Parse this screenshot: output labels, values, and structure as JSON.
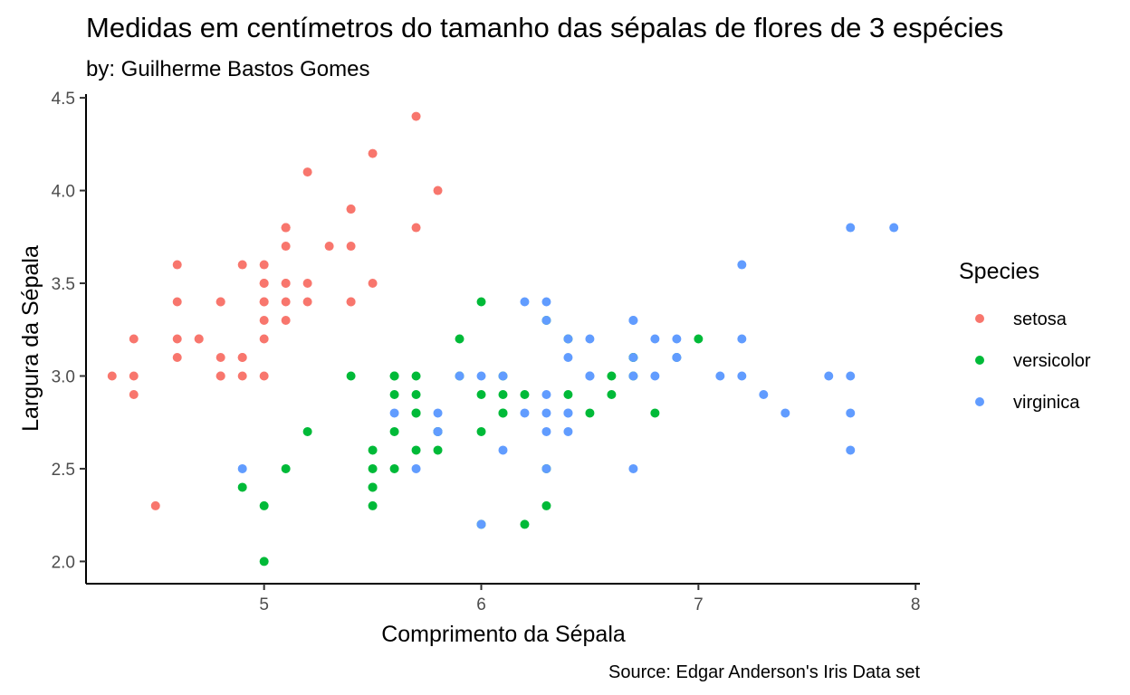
{
  "chart_data": {
    "type": "scatter",
    "title": "Medidas em centímetros do tamanho das sépalas de flores de 3 espécies",
    "subtitle": "by: Guilherme Bastos Gomes",
    "xlabel": "Comprimento da Sépala",
    "ylabel": "Largura da Sépala",
    "caption": "Source: Edgar Anderson's Iris Data set",
    "xlim": [
      4.18,
      8.02
    ],
    "ylim": [
      1.88,
      4.52
    ],
    "x_ticks": [
      5,
      6,
      7,
      8
    ],
    "x_tick_labels": [
      "5",
      "6",
      "7",
      "8"
    ],
    "y_ticks": [
      2.0,
      2.5,
      3.0,
      3.5,
      4.0,
      4.5
    ],
    "y_tick_labels": [
      "2.0",
      "2.5",
      "3.0",
      "3.5",
      "4.0",
      "4.5"
    ],
    "grid": false,
    "legend": {
      "title": "Species",
      "position": "right"
    },
    "series": [
      {
        "name": "setosa",
        "color": "#F8766D",
        "x": [
          5.1,
          4.9,
          4.7,
          4.6,
          5.0,
          5.4,
          4.6,
          5.0,
          4.4,
          4.9,
          5.4,
          4.8,
          4.8,
          4.3,
          5.8,
          5.7,
          5.4,
          5.1,
          5.7,
          5.1,
          5.4,
          5.1,
          4.6,
          5.1,
          4.8,
          5.0,
          5.0,
          5.2,
          5.2,
          4.7,
          4.8,
          5.4,
          5.2,
          5.5,
          4.9,
          5.0,
          5.5,
          4.9,
          4.4,
          5.1,
          5.0,
          4.5,
          4.4,
          5.0,
          5.1,
          4.8,
          5.1,
          4.6,
          5.3,
          5.0
        ],
        "y": [
          3.5,
          3.0,
          3.2,
          3.1,
          3.6,
          3.9,
          3.4,
          3.4,
          2.9,
          3.1,
          3.7,
          3.4,
          3.0,
          3.0,
          4.0,
          4.4,
          3.9,
          3.5,
          3.8,
          3.8,
          3.4,
          3.7,
          3.6,
          3.3,
          3.4,
          3.0,
          3.4,
          3.5,
          3.4,
          3.2,
          3.1,
          3.4,
          4.1,
          4.2,
          3.1,
          3.2,
          3.5,
          3.6,
          3.0,
          3.4,
          3.5,
          2.3,
          3.2,
          3.5,
          3.8,
          3.0,
          3.8,
          3.2,
          3.7,
          3.3
        ]
      },
      {
        "name": "versicolor",
        "color": "#00BA38",
        "x": [
          7.0,
          6.4,
          6.9,
          5.5,
          6.5,
          5.7,
          6.3,
          4.9,
          6.6,
          5.2,
          5.0,
          5.9,
          6.0,
          6.1,
          5.6,
          6.7,
          5.6,
          5.8,
          6.2,
          5.6,
          5.9,
          6.1,
          6.3,
          6.1,
          6.4,
          6.6,
          6.8,
          6.7,
          6.0,
          5.7,
          5.5,
          5.5,
          5.8,
          6.0,
          5.4,
          6.0,
          6.7,
          6.3,
          5.6,
          5.5,
          5.5,
          6.1,
          5.8,
          5.0,
          5.6,
          5.7,
          5.7,
          6.2,
          5.1,
          5.7
        ],
        "y": [
          3.2,
          3.2,
          3.1,
          2.3,
          2.8,
          2.8,
          3.3,
          2.4,
          2.9,
          2.7,
          2.0,
          3.0,
          2.2,
          2.9,
          2.9,
          3.1,
          3.0,
          2.7,
          2.2,
          2.5,
          3.2,
          2.8,
          2.5,
          2.8,
          2.9,
          3.0,
          2.8,
          3.0,
          2.9,
          2.6,
          2.4,
          2.4,
          2.7,
          2.7,
          3.0,
          3.4,
          3.1,
          2.3,
          3.0,
          2.5,
          2.6,
          3.0,
          2.6,
          2.3,
          2.7,
          3.0,
          2.9,
          2.9,
          2.5,
          2.8
        ]
      },
      {
        "name": "virginica",
        "color": "#619CFF",
        "x": [
          6.3,
          5.8,
          7.1,
          6.3,
          6.5,
          7.6,
          4.9,
          7.3,
          6.7,
          7.2,
          6.5,
          6.4,
          6.8,
          5.7,
          5.8,
          6.4,
          6.5,
          7.7,
          7.7,
          6.0,
          6.9,
          5.6,
          7.7,
          6.3,
          6.7,
          7.2,
          6.2,
          6.1,
          6.4,
          7.2,
          7.4,
          7.9,
          6.4,
          6.3,
          6.1,
          7.7,
          6.3,
          6.4,
          6.0,
          6.9,
          6.7,
          6.9,
          5.8,
          6.8,
          6.7,
          6.7,
          6.3,
          6.5,
          6.2,
          5.9
        ],
        "y": [
          3.3,
          2.7,
          3.0,
          2.9,
          3.0,
          3.0,
          2.5,
          2.9,
          2.5,
          3.6,
          3.2,
          2.7,
          3.0,
          2.5,
          2.8,
          3.2,
          3.0,
          3.8,
          2.6,
          2.2,
          3.2,
          2.8,
          2.8,
          2.7,
          3.3,
          3.2,
          2.8,
          3.0,
          2.8,
          3.0,
          2.8,
          3.8,
          2.8,
          2.8,
          2.6,
          3.0,
          3.4,
          3.1,
          3.0,
          3.1,
          3.1,
          3.1,
          2.7,
          3.2,
          3.3,
          3.0,
          2.5,
          3.0,
          3.4,
          3.0
        ]
      }
    ]
  }
}
